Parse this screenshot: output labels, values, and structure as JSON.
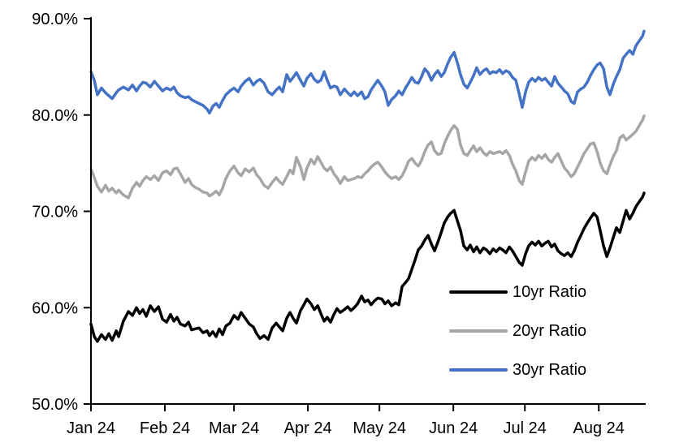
{
  "page": {
    "background": "#ffffff"
  },
  "chart_data": {
    "type": "line",
    "title": "",
    "grid": false,
    "legend_position": "inside-lower-right",
    "x_axis": {
      "tick_labels": [
        "Jan 24",
        "Feb 24",
        "Mar 24",
        "Apr 24",
        "May 24",
        "Jun 24",
        "Jul 24",
        "Aug 24"
      ],
      "tick_days": [
        0,
        31,
        60,
        91,
        121,
        152,
        182,
        213
      ],
      "domain_days": [
        0,
        232
      ]
    },
    "y_axis": {
      "tick_labels": [
        "50.0%",
        "60.0%",
        "70.0%",
        "80.0%",
        "90.0%"
      ],
      "tick_values": [
        50,
        60,
        70,
        80,
        90
      ],
      "range": [
        50,
        90
      ],
      "unit": "%"
    },
    "days": [
      0,
      1.4,
      2.7,
      4.4,
      6.1,
      7.5,
      8.9,
      10.6,
      11.6,
      13.6,
      15.7,
      17.4,
      19.1,
      20.4,
      21.8,
      23.2,
      24.9,
      26.6,
      28.3,
      30,
      31.7,
      33.4,
      34.8,
      36.1,
      37.5,
      39.5,
      40.9,
      42.2,
      43.6,
      45.3,
      47,
      48.7,
      49.7,
      51.1,
      52.5,
      53.8,
      55.2,
      56.6,
      58.3,
      60,
      61.7,
      63,
      64.7,
      66.4,
      68.1,
      69.5,
      70.9,
      72.6,
      74.3,
      76,
      77.7,
      79,
      80.4,
      82.1,
      83.5,
      84.8,
      86.2,
      87.9,
      89.3,
      90.6,
      92.3,
      93.7,
      95.1,
      96.4,
      97.8,
      99.1,
      100.5,
      101.9,
      103.2,
      104.6,
      106.3,
      107.7,
      109,
      110.4,
      111.8,
      113.5,
      114.8,
      116.2,
      117.5,
      118.9,
      120.3,
      122,
      123.3,
      124.7,
      126.1,
      127.8,
      129.1,
      130.5,
      131.9,
      133.2,
      134.6,
      136,
      137.3,
      138.7,
      140,
      141.4,
      142.8,
      144.1,
      145.5,
      146.9,
      148.2,
      149.6,
      150.9,
      152.3,
      153.7,
      155,
      156.4,
      157.8,
      159.1,
      160.5,
      161.8,
      163.2,
      164.6,
      165.9,
      167.3,
      168.7,
      170,
      171.4,
      172.7,
      174.1,
      175.5,
      176.8,
      178.2,
      179.6,
      180.9,
      182.3,
      183.6,
      185,
      186.4,
      187.7,
      189.1,
      190.5,
      191.8,
      193.2,
      194.5,
      195.9,
      197.3,
      198.6,
      200,
      201.4,
      202.7,
      204.1,
      205.5,
      206.8,
      208.2,
      209.5,
      210.9,
      212.3,
      213.6,
      215,
      216.4,
      217.7,
      219.1,
      220.4,
      221.8,
      223.2,
      224.5,
      225.9,
      227.3,
      228.6,
      230,
      231.4,
      232
    ],
    "series": [
      {
        "name": "10yr Ratio",
        "color": "#000000",
        "values": [
          58.3,
          57.0,
          56.5,
          57.2,
          56.7,
          57.3,
          56.6,
          57.6,
          57.0,
          58.6,
          59.6,
          59.2,
          60.0,
          59.4,
          59.8,
          59.1,
          60.2,
          59.6,
          60.1,
          58.8,
          58.5,
          59.3,
          58.6,
          59.0,
          58.3,
          58.1,
          58.5,
          57.7,
          57.8,
          57.9,
          57.4,
          57.6,
          57.1,
          57.5,
          57.0,
          57.8,
          57.2,
          58.1,
          58.4,
          59.2,
          58.8,
          59.5,
          58.9,
          58.3,
          58.0,
          57.3,
          56.8,
          57.1,
          56.7,
          57.9,
          58.4,
          58.0,
          57.6,
          58.9,
          59.5,
          58.9,
          58.4,
          59.7,
          60.3,
          60.9,
          60.4,
          59.8,
          60.2,
          59.4,
          58.6,
          59.0,
          58.5,
          59.3,
          59.9,
          59.5,
          59.8,
          60.1,
          59.7,
          60.0,
          60.4,
          61.2,
          60.6,
          60.8,
          60.3,
          60.7,
          61.0,
          60.9,
          60.4,
          60.7,
          60.2,
          60.5,
          60.3,
          62.2,
          62.6,
          63.0,
          64.0,
          65.0,
          66.0,
          66.4,
          67.0,
          67.5,
          66.6,
          65.9,
          66.8,
          67.8,
          68.8,
          69.4,
          69.8,
          70.1,
          69.0,
          68.0,
          66.4,
          66.0,
          66.5,
          65.8,
          66.3,
          65.7,
          66.2,
          66.0,
          65.6,
          66.1,
          65.8,
          66.2,
          66.0,
          65.7,
          66.3,
          65.9,
          65.3,
          64.7,
          64.4,
          65.6,
          66.4,
          66.8,
          66.5,
          66.9,
          66.4,
          66.7,
          66.9,
          66.3,
          66.6,
          65.9,
          65.6,
          65.4,
          65.7,
          65.3,
          65.9,
          66.8,
          67.5,
          68.2,
          68.8,
          69.3,
          69.8,
          69.4,
          68.0,
          66.4,
          65.3,
          66.2,
          67.3,
          68.3,
          67.8,
          69.0,
          70.1,
          69.2,
          69.8,
          70.5,
          71.0,
          71.5,
          71.9
        ]
      },
      {
        "name": "20yr Ratio",
        "color": "#A6A6A6",
        "values": [
          74.4,
          73.5,
          72.6,
          72.0,
          72.7,
          72.1,
          72.4,
          71.9,
          72.2,
          71.7,
          71.4,
          72.4,
          73.0,
          72.6,
          73.2,
          73.6,
          73.3,
          73.7,
          73.2,
          74.0,
          74.2,
          73.8,
          74.4,
          74.5,
          73.9,
          73.0,
          73.4,
          72.8,
          72.5,
          72.3,
          72.0,
          71.9,
          71.6,
          71.8,
          72.1,
          71.7,
          72.4,
          73.4,
          74.2,
          74.7,
          74.0,
          73.7,
          74.4,
          74.1,
          74.5,
          73.8,
          73.4,
          72.7,
          72.4,
          73.0,
          73.5,
          73.1,
          72.8,
          73.6,
          74.3,
          73.9,
          75.6,
          74.6,
          73.3,
          74.5,
          75.4,
          74.9,
          75.7,
          75.1,
          74.5,
          74.2,
          74.6,
          73.9,
          73.5,
          72.9,
          73.6,
          73.2,
          73.3,
          73.4,
          73.6,
          73.5,
          73.9,
          74.2,
          74.6,
          74.9,
          75.1,
          74.6,
          74.1,
          73.7,
          73.4,
          73.6,
          73.3,
          73.7,
          74.4,
          75.2,
          75.5,
          75.0,
          74.7,
          75.3,
          76.2,
          76.9,
          77.2,
          76.3,
          75.9,
          76.0,
          77.0,
          77.8,
          78.4,
          78.9,
          78.5,
          76.9,
          76.0,
          75.8,
          76.3,
          76.8,
          76.2,
          76.6,
          76.1,
          75.8,
          76.2,
          76.0,
          76.1,
          76.2,
          76.0,
          76.3,
          75.8,
          74.9,
          74.2,
          73.2,
          72.8,
          74.1,
          75.2,
          75.6,
          75.3,
          75.8,
          75.5,
          75.9,
          75.4,
          75.1,
          75.6,
          76.0,
          75.2,
          74.5,
          74.1,
          73.6,
          73.9,
          74.6,
          75.3,
          76.0,
          76.5,
          77.0,
          77.1,
          76.2,
          75.0,
          74.2,
          73.9,
          74.8,
          75.7,
          76.3,
          77.6,
          77.9,
          77.4,
          77.7,
          78.0,
          78.3,
          78.9,
          79.5,
          79.9
        ]
      },
      {
        "name": "30yr Ratio",
        "color": "#4472C4",
        "values": [
          84.5,
          83.6,
          82.1,
          82.8,
          82.3,
          82.0,
          81.7,
          82.3,
          82.6,
          82.9,
          82.6,
          83.1,
          82.5,
          83.0,
          83.4,
          83.3,
          82.9,
          83.5,
          83.0,
          82.5,
          82.8,
          82.6,
          82.9,
          82.3,
          82.0,
          81.8,
          81.9,
          81.6,
          81.4,
          81.2,
          81.0,
          80.6,
          80.2,
          80.9,
          81.2,
          80.8,
          81.5,
          82.1,
          82.5,
          82.8,
          82.4,
          83.0,
          83.5,
          83.8,
          83.1,
          83.5,
          83.7,
          83.3,
          82.4,
          82.1,
          82.6,
          82.9,
          82.4,
          84.2,
          83.5,
          83.9,
          84.4,
          83.6,
          83.0,
          83.8,
          84.3,
          83.7,
          83.4,
          83.6,
          84.5,
          83.6,
          82.8,
          83.0,
          82.9,
          82.1,
          82.7,
          82.3,
          82.0,
          82.4,
          82.0,
          82.4,
          81.7,
          81.9,
          82.6,
          83.1,
          83.6,
          83.0,
          82.4,
          81.0,
          81.6,
          82.0,
          82.5,
          82.1,
          82.8,
          83.3,
          83.9,
          83.4,
          83.3,
          84.0,
          84.8,
          84.4,
          83.6,
          84.2,
          84.6,
          84.0,
          84.4,
          85.3,
          86.0,
          86.5,
          85.4,
          84.2,
          83.2,
          82.8,
          83.4,
          84.1,
          84.9,
          84.2,
          84.6,
          84.8,
          84.3,
          84.5,
          84.4,
          84.7,
          84.3,
          84.6,
          84.4,
          83.9,
          83.6,
          82.2,
          80.8,
          82.4,
          83.4,
          83.8,
          83.5,
          83.9,
          83.6,
          83.8,
          83.4,
          83.0,
          84.0,
          83.3,
          82.9,
          82.5,
          82.2,
          81.4,
          81.2,
          82.4,
          82.7,
          82.9,
          83.4,
          84.1,
          84.7,
          85.2,
          85.4,
          84.8,
          82.9,
          82.1,
          83.2,
          84.0,
          84.7,
          85.9,
          86.3,
          86.7,
          86.3,
          87.2,
          87.7,
          88.2,
          88.7
        ]
      }
    ]
  }
}
